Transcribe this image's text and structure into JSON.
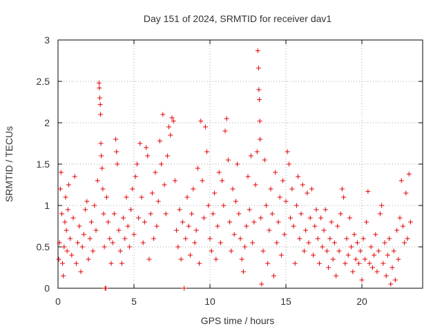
{
  "chart_data": {
    "type": "scatter",
    "title": "Day 151 of 2024, SRMTID for receiver dav1",
    "xlabel": "GPS time / hours",
    "ylabel": "SRMTID / TECUs",
    "xlim": [
      0,
      24
    ],
    "ylim": [
      0,
      3
    ],
    "xticks": [
      0,
      5,
      10,
      15,
      20
    ],
    "yticks": [
      0,
      0.5,
      1,
      1.5,
      2,
      2.5,
      3
    ],
    "grid": true,
    "marker": "+",
    "color": "#e00000",
    "series": [
      {
        "name": "SRMTID",
        "points": [
          [
            0.05,
            0.35
          ],
          [
            0.1,
            0.55
          ],
          [
            0.15,
            1.2
          ],
          [
            0.2,
            1.4
          ],
          [
            0.25,
            0.9
          ],
          [
            0.3,
            0.3
          ],
          [
            0.35,
            0.15
          ],
          [
            0.4,
            0.5
          ],
          [
            0.45,
            0.8
          ],
          [
            0.5,
            1.1
          ],
          [
            0.55,
            0.7
          ],
          [
            0.6,
            0.45
          ],
          [
            0.65,
            0.95
          ],
          [
            0.7,
            1.25
          ],
          [
            0.8,
            0.6
          ],
          [
            0.9,
            0.4
          ],
          [
            1.0,
            0.85
          ],
          [
            1.1,
            1.35
          ],
          [
            1.2,
            0.3
          ],
          [
            1.3,
            0.55
          ],
          [
            1.4,
            0.75
          ],
          [
            1.5,
            0.2
          ],
          [
            1.6,
            0.5
          ],
          [
            1.7,
            0.65
          ],
          [
            1.8,
            0.95
          ],
          [
            1.9,
            1.05
          ],
          [
            2.0,
            0.35
          ],
          [
            2.1,
            0.6
          ],
          [
            2.2,
            0.8
          ],
          [
            2.3,
            0.45
          ],
          [
            2.4,
            1.0
          ],
          [
            2.5,
            0.7
          ],
          [
            2.6,
            1.3
          ],
          [
            2.7,
            2.48
          ],
          [
            2.72,
            2.42
          ],
          [
            2.75,
            2.3
          ],
          [
            2.78,
            2.22
          ],
          [
            2.8,
            2.1
          ],
          [
            2.82,
            1.75
          ],
          [
            2.85,
            1.6
          ],
          [
            2.9,
            1.45
          ],
          [
            2.95,
            1.2
          ],
          [
            3.0,
            0.9
          ],
          [
            3.05,
            0.5
          ],
          [
            3.1,
            0.0
          ],
          [
            3.15,
            0.0
          ],
          [
            3.2,
            1.1
          ],
          [
            3.3,
            0.8
          ],
          [
            3.4,
            0.6
          ],
          [
            3.5,
            0.3
          ],
          [
            3.6,
            0.55
          ],
          [
            3.7,
            0.9
          ],
          [
            3.8,
            1.8
          ],
          [
            3.85,
            1.65
          ],
          [
            3.9,
            1.5
          ],
          [
            4.0,
            0.7
          ],
          [
            4.1,
            0.45
          ],
          [
            4.2,
            0.3
          ],
          [
            4.3,
            0.85
          ],
          [
            4.4,
            0.6
          ],
          [
            4.5,
            1.1
          ],
          [
            4.6,
            0.75
          ],
          [
            4.7,
            0.5
          ],
          [
            4.8,
            0.95
          ],
          [
            4.9,
            1.2
          ],
          [
            5.0,
            0.65
          ],
          [
            5.1,
            1.35
          ],
          [
            5.2,
            1.5
          ],
          [
            5.3,
            0.85
          ],
          [
            5.4,
            1.75
          ],
          [
            5.5,
            1.1
          ],
          [
            5.6,
            0.55
          ],
          [
            5.7,
            0.8
          ],
          [
            5.8,
            1.7
          ],
          [
            5.9,
            1.6
          ],
          [
            6.0,
            0.35
          ],
          [
            6.1,
            0.9
          ],
          [
            6.2,
            1.15
          ],
          [
            6.3,
            0.6
          ],
          [
            6.4,
            1.4
          ],
          [
            6.5,
            0.75
          ],
          [
            6.6,
            1.05
          ],
          [
            6.7,
            1.78
          ],
          [
            6.8,
            1.5
          ],
          [
            6.9,
            2.1
          ],
          [
            7.0,
            1.25
          ],
          [
            7.1,
            0.9
          ],
          [
            7.2,
            1.6
          ],
          [
            7.3,
            1.95
          ],
          [
            7.4,
            1.85
          ],
          [
            7.5,
            2.06
          ],
          [
            7.6,
            2.02
          ],
          [
            7.7,
            1.3
          ],
          [
            7.8,
            0.7
          ],
          [
            7.9,
            0.5
          ],
          [
            8.0,
            0.95
          ],
          [
            8.1,
            0.35
          ],
          [
            8.2,
            0.8
          ],
          [
            8.3,
            0.0
          ],
          [
            8.4,
            0.6
          ],
          [
            8.5,
            1.1
          ],
          [
            8.6,
            0.75
          ],
          [
            8.7,
            0.4
          ],
          [
            8.8,
            0.9
          ],
          [
            8.9,
            1.2
          ],
          [
            9.0,
            0.55
          ],
          [
            9.1,
            0.7
          ],
          [
            9.2,
            1.45
          ],
          [
            9.3,
            0.3
          ],
          [
            9.4,
            2.02
          ],
          [
            9.5,
            1.3
          ],
          [
            9.6,
            0.85
          ],
          [
            9.7,
            1.95
          ],
          [
            9.8,
            1.65
          ],
          [
            9.9,
            1.0
          ],
          [
            10.0,
            0.6
          ],
          [
            10.1,
            0.45
          ],
          [
            10.2,
            0.9
          ],
          [
            10.3,
            1.15
          ],
          [
            10.4,
            0.35
          ],
          [
            10.5,
            0.75
          ],
          [
            10.6,
            1.4
          ],
          [
            10.7,
            0.55
          ],
          [
            10.8,
            1.3
          ],
          [
            10.9,
            1.0
          ],
          [
            11.0,
            1.9
          ],
          [
            11.1,
            2.05
          ],
          [
            11.2,
            1.55
          ],
          [
            11.3,
            0.8
          ],
          [
            11.4,
            0.45
          ],
          [
            11.5,
            1.2
          ],
          [
            11.6,
            0.65
          ],
          [
            11.7,
            1.05
          ],
          [
            11.8,
            1.5
          ],
          [
            11.9,
            0.9
          ],
          [
            12.0,
            0.6
          ],
          [
            12.1,
            0.35
          ],
          [
            12.2,
            0.2
          ],
          [
            12.3,
            0.5
          ],
          [
            12.4,
            0.75
          ],
          [
            12.5,
            1.35
          ],
          [
            12.6,
            0.95
          ],
          [
            12.7,
            1.6
          ],
          [
            12.8,
            0.55
          ],
          [
            12.9,
            0.8
          ],
          [
            13.0,
            1.25
          ],
          [
            13.1,
            1.65
          ],
          [
            13.15,
            2.87
          ],
          [
            13.2,
            2.66
          ],
          [
            13.22,
            2.4
          ],
          [
            13.25,
            2.28
          ],
          [
            13.28,
            2.02
          ],
          [
            13.3,
            1.8
          ],
          [
            13.35,
            0.85
          ],
          [
            13.4,
            0.05
          ],
          [
            13.5,
            0.45
          ],
          [
            13.6,
            1.55
          ],
          [
            13.7,
            1.0
          ],
          [
            13.8,
            0.3
          ],
          [
            13.9,
            0.7
          ],
          [
            14.0,
            1.2
          ],
          [
            14.1,
            0.9
          ],
          [
            14.2,
            0.15
          ],
          [
            14.3,
            1.4
          ],
          [
            14.4,
            0.55
          ],
          [
            14.5,
            0.8
          ],
          [
            14.6,
            1.1
          ],
          [
            14.7,
            0.4
          ],
          [
            14.8,
            1.3
          ],
          [
            14.9,
            0.65
          ],
          [
            15.0,
            1.05
          ],
          [
            15.1,
            1.65
          ],
          [
            15.2,
            1.5
          ],
          [
            15.3,
            0.85
          ],
          [
            15.4,
            1.2
          ],
          [
            15.5,
            0.75
          ],
          [
            15.6,
            0.3
          ],
          [
            15.7,
            1.0
          ],
          [
            15.8,
            1.35
          ],
          [
            15.9,
            0.6
          ],
          [
            16.0,
            0.9
          ],
          [
            16.1,
            1.25
          ],
          [
            16.2,
            0.45
          ],
          [
            16.3,
            0.7
          ],
          [
            16.4,
            1.15
          ],
          [
            16.5,
            0.55
          ],
          [
            16.6,
            0.85
          ],
          [
            16.7,
            1.2
          ],
          [
            16.8,
            0.4
          ],
          [
            16.9,
            0.75
          ],
          [
            17.0,
            0.95
          ],
          [
            17.1,
            0.6
          ],
          [
            17.2,
            0.3
          ],
          [
            17.3,
            0.85
          ],
          [
            17.4,
            0.5
          ],
          [
            17.5,
            0.7
          ],
          [
            17.6,
            0.95
          ],
          [
            17.7,
            0.45
          ],
          [
            17.8,
            0.25
          ],
          [
            17.9,
            0.6
          ],
          [
            18.0,
            0.8
          ],
          [
            18.1,
            0.35
          ],
          [
            18.2,
            0.55
          ],
          [
            18.3,
            0.15
          ],
          [
            18.4,
            0.75
          ],
          [
            18.5,
            0.45
          ],
          [
            18.6,
            0.9
          ],
          [
            18.7,
            1.2
          ],
          [
            18.8,
            1.1
          ],
          [
            18.9,
            0.3
          ],
          [
            19.0,
            0.6
          ],
          [
            19.1,
            0.4
          ],
          [
            19.2,
            0.85
          ],
          [
            19.3,
            0.5
          ],
          [
            19.4,
            0.2
          ],
          [
            19.5,
            0.65
          ],
          [
            19.6,
            0.35
          ],
          [
            19.7,
            0.55
          ],
          [
            19.8,
            0.3
          ],
          [
            19.9,
            0.45
          ],
          [
            20.0,
            0.1
          ],
          [
            20.1,
            0.6
          ],
          [
            20.2,
            0.35
          ],
          [
            20.3,
            0.8
          ],
          [
            20.4,
            1.17
          ],
          [
            20.5,
            0.3
          ],
          [
            20.6,
            0.5
          ],
          [
            20.7,
            0.25
          ],
          [
            20.8,
            0.4
          ],
          [
            20.9,
            0.65
          ],
          [
            21.0,
            0.2
          ],
          [
            21.1,
            0.45
          ],
          [
            21.2,
            0.9
          ],
          [
            21.3,
            1.0
          ],
          [
            21.4,
            0.3
          ],
          [
            21.5,
            0.55
          ],
          [
            21.6,
            0.15
          ],
          [
            21.7,
            0.4
          ],
          [
            21.8,
            0.6
          ],
          [
            21.9,
            0.05
          ],
          [
            22.0,
            0.25
          ],
          [
            22.1,
            0.45
          ],
          [
            22.2,
            0.1
          ],
          [
            22.3,
            0.7
          ],
          [
            22.4,
            0.35
          ],
          [
            22.5,
            0.85
          ],
          [
            22.6,
            1.3
          ],
          [
            22.7,
            0.75
          ],
          [
            22.8,
            0.55
          ],
          [
            22.9,
            1.15
          ],
          [
            23.0,
            0.6
          ],
          [
            23.1,
            1.38
          ],
          [
            23.2,
            0.8
          ]
        ]
      }
    ]
  }
}
